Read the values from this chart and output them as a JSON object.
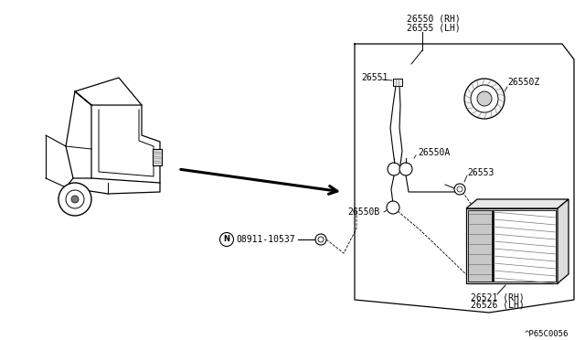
{
  "bg_color": "#ffffff",
  "line_color": "#000000",
  "gray_color": "#777777",
  "light_gray": "#cccccc",
  "part_numbers": {
    "top_rh": "26550 (RH)",
    "top_lh": "26555 (LH)",
    "p26551": "26551",
    "p26550z": "26550Z",
    "p26550a": "26550A",
    "p26553": "26553",
    "p26550b": "26550B",
    "bolt_label": "08911-10537",
    "bottom_rh": "26521 (RH)",
    "bottom_lh": "26526 (LH)",
    "code": "^P65C0056"
  },
  "figsize": [
    6.4,
    3.72
  ],
  "dpi": 100
}
